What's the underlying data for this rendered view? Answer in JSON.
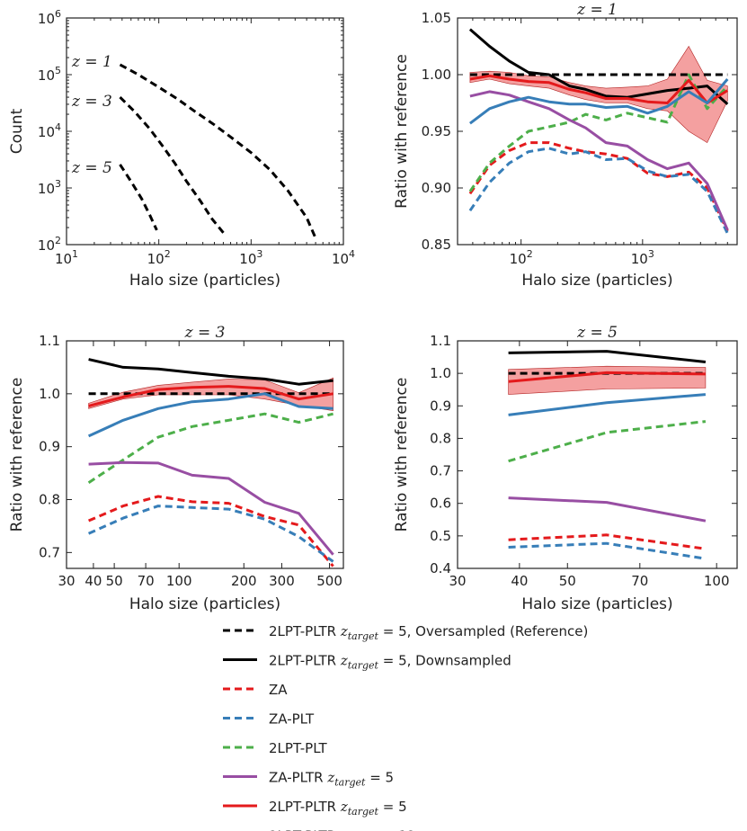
{
  "chart_data": [
    {
      "type": "line",
      "title": "",
      "xlabel": "Halo size (particles)",
      "ylabel": "Count",
      "xscale": "log",
      "yscale": "log",
      "xlim": [
        10,
        10000
      ],
      "ylim": [
        100,
        1000000
      ],
      "xticklabels": [
        "10^1",
        "10^2",
        "10^3",
        "10^4"
      ],
      "yticklabels": [
        "10^2",
        "10^3",
        "10^4",
        "10^5",
        "10^6"
      ],
      "annotations": [
        "z = 1",
        "z = 3",
        "z = 5"
      ],
      "series": [
        {
          "name": "z = 1",
          "style": "dashed",
          "color": "#000000",
          "x": [
            38,
            60,
            100,
            160,
            250,
            400,
            650,
            1000,
            1600,
            2500,
            4000,
            5000
          ],
          "y": [
            150000,
            100000,
            60000,
            37000,
            22000,
            13000,
            7200,
            4200,
            2100,
            900,
            300,
            130
          ]
        },
        {
          "name": "z = 3",
          "style": "dashed",
          "color": "#000000",
          "x": [
            38,
            55,
            80,
            110,
            150,
            200,
            280,
            380,
            520
          ],
          "y": [
            40000,
            22000,
            11000,
            5500,
            2700,
            1300,
            600,
            280,
            150
          ]
        },
        {
          "name": "z = 5",
          "style": "dashed",
          "color": "#000000",
          "x": [
            38,
            50,
            65,
            80,
            95
          ],
          "y": [
            2600,
            1300,
            650,
            330,
            180
          ]
        }
      ]
    },
    {
      "type": "line",
      "title": "z = 1",
      "xlabel": "Halo size (particles)",
      "ylabel": "Ratio with reference",
      "xscale": "log",
      "xlim": [
        30,
        6000
      ],
      "ylim": [
        0.85,
        1.05
      ],
      "xticklabels": [
        "10^2",
        "10^3"
      ],
      "yticklabels": [
        "0.85",
        "0.90",
        "0.95",
        "1.00",
        "1.05"
      ],
      "x": [
        38,
        55,
        80,
        115,
        170,
        250,
        340,
        500,
        750,
        1100,
        1600,
        2400,
        3400,
        5000
      ],
      "band": {
        "x": [
          38,
          55,
          80,
          115,
          170,
          250,
          340,
          500,
          750,
          1100,
          1600,
          2400,
          3400,
          5000
        ],
        "lower": [
          0.993,
          0.996,
          0.992,
          0.99,
          0.988,
          0.982,
          0.978,
          0.975,
          0.975,
          0.97,
          0.968,
          0.95,
          0.94,
          0.977
        ],
        "upper": [
          1.002,
          1.003,
          1.002,
          0.999,
          0.998,
          0.993,
          0.99,
          0.988,
          0.989,
          0.99,
          0.996,
          1.025,
          0.995,
          0.99
        ]
      },
      "series": [
        {
          "name": "Reference",
          "style": "dashed",
          "color": "#000000",
          "values": [
            1.0,
            1.0,
            1.0,
            1.0,
            1.0,
            1.0,
            1.0,
            1.0,
            1.0,
            1.0,
            1.0,
            1.0,
            1.0,
            1.0
          ]
        },
        {
          "name": "Downsampled",
          "style": "solid",
          "color": "#000000",
          "values": [
            1.04,
            1.025,
            1.012,
            1.002,
            1.0,
            0.99,
            0.987,
            0.981,
            0.98,
            0.983,
            0.986,
            0.988,
            0.99,
            0.974
          ]
        },
        {
          "name": "ZA",
          "style": "dashed",
          "color": "#e41a1c",
          "values": [
            0.895,
            0.92,
            0.933,
            0.94,
            0.94,
            0.935,
            0.932,
            0.93,
            0.926,
            0.913,
            0.91,
            0.914,
            0.9,
            0.862
          ]
        },
        {
          "name": "ZA-PLT",
          "style": "dashed",
          "color": "#377eb8",
          "values": [
            0.88,
            0.905,
            0.922,
            0.932,
            0.935,
            0.93,
            0.932,
            0.925,
            0.926,
            0.915,
            0.91,
            0.912,
            0.897,
            0.86
          ]
        },
        {
          "name": "2LPT-PLT",
          "style": "dashed",
          "color": "#4daf4a",
          "values": [
            0.897,
            0.922,
            0.937,
            0.95,
            0.954,
            0.958,
            0.965,
            0.96,
            0.966,
            0.962,
            0.958,
            1.0,
            0.97,
            0.99
          ]
        },
        {
          "name": "ZA-PLTR",
          "style": "solid",
          "color": "#984ea3",
          "values": [
            0.981,
            0.985,
            0.982,
            0.976,
            0.97,
            0.96,
            0.953,
            0.94,
            0.937,
            0.925,
            0.917,
            0.922,
            0.904,
            0.863
          ]
        },
        {
          "name": "2LPT-PLTR z5",
          "style": "solid",
          "color": "#e41a1c",
          "values": [
            0.996,
            0.999,
            0.996,
            0.994,
            0.993,
            0.987,
            0.984,
            0.979,
            0.979,
            0.976,
            0.975,
            0.995,
            0.975,
            0.986
          ]
        },
        {
          "name": "2LPT-PLTR z12",
          "style": "solid",
          "color": "#377eb8",
          "values": [
            0.957,
            0.97,
            0.976,
            0.98,
            0.976,
            0.974,
            0.974,
            0.971,
            0.972,
            0.966,
            0.972,
            0.985,
            0.975,
            0.996
          ]
        }
      ]
    },
    {
      "type": "line",
      "title": "z = 3",
      "xlabel": "Halo size (particles)",
      "ylabel": "Ratio with reference",
      "xscale": "log",
      "xlim": [
        30,
        580
      ],
      "ylim": [
        0.67,
        1.1
      ],
      "xticks": [
        30,
        40,
        50,
        70,
        100,
        200,
        300,
        500
      ],
      "xticklabels": [
        "30",
        "40",
        "50",
        "70",
        "100",
        "200",
        "300",
        "500"
      ],
      "yticklabels": [
        "0.7",
        "0.8",
        "0.9",
        "1.0",
        "1.1"
      ],
      "x": [
        38,
        55,
        80,
        115,
        170,
        250,
        360,
        520
      ],
      "band": {
        "x": [
          38,
          55,
          80,
          115,
          170,
          250,
          360,
          520
        ],
        "lower": [
          0.972,
          0.99,
          0.998,
          0.998,
          0.998,
          0.99,
          0.978,
          0.968
        ],
        "upper": [
          0.982,
          1.003,
          1.016,
          1.022,
          1.028,
          1.026,
          1.002,
          1.03
        ]
      },
      "series": [
        {
          "name": "Reference",
          "style": "dashed",
          "color": "#000000",
          "values": [
            1.0,
            1.0,
            1.0,
            1.0,
            1.0,
            1.0,
            1.0,
            1.0
          ]
        },
        {
          "name": "Downsampled",
          "style": "solid",
          "color": "#000000",
          "values": [
            1.065,
            1.05,
            1.047,
            1.04,
            1.033,
            1.028,
            1.018,
            1.025
          ]
        },
        {
          "name": "ZA",
          "style": "dashed",
          "color": "#e41a1c",
          "values": [
            0.76,
            0.788,
            0.806,
            0.796,
            0.793,
            0.768,
            0.752,
            0.674
          ]
        },
        {
          "name": "ZA-PLT",
          "style": "dashed",
          "color": "#377eb8",
          "values": [
            0.736,
            0.765,
            0.788,
            0.785,
            0.782,
            0.763,
            0.73,
            0.683
          ]
        },
        {
          "name": "2LPT-PLT",
          "style": "dashed",
          "color": "#4daf4a",
          "values": [
            0.832,
            0.875,
            0.918,
            0.938,
            0.95,
            0.962,
            0.946,
            0.962
          ]
        },
        {
          "name": "ZA-PLTR",
          "style": "solid",
          "color": "#984ea3",
          "values": [
            0.867,
            0.87,
            0.869,
            0.846,
            0.84,
            0.795,
            0.774,
            0.696
          ]
        },
        {
          "name": "2LPT-PLTR z5",
          "style": "solid",
          "color": "#e41a1c",
          "values": [
            0.977,
            0.994,
            1.008,
            1.012,
            1.014,
            1.01,
            0.99,
            1.0
          ]
        },
        {
          "name": "2LPT-PLTR z12",
          "style": "solid",
          "color": "#377eb8",
          "values": [
            0.92,
            0.95,
            0.972,
            0.985,
            0.99,
            1.0,
            0.976,
            0.972
          ]
        }
      ]
    },
    {
      "type": "line",
      "title": "z = 5",
      "xlabel": "Halo size (particles)",
      "ylabel": "Ratio with reference",
      "xscale": "log",
      "xlim": [
        30,
        110
      ],
      "ylim": [
        0.4,
        1.1
      ],
      "xticks": [
        30,
        40,
        50,
        70,
        100
      ],
      "xticklabels": [
        "30",
        "40",
        "50",
        "70",
        "100"
      ],
      "yticklabels": [
        "0.4",
        "0.5",
        "0.6",
        "0.7",
        "0.8",
        "0.9",
        "1.0",
        "1.1"
      ],
      "x": [
        38,
        60,
        95
      ],
      "band": {
        "x": [
          38,
          60,
          95
        ],
        "lower": [
          0.935,
          0.952,
          0.955
        ],
        "upper": [
          1.012,
          1.022,
          1.018
        ]
      },
      "series": [
        {
          "name": "Reference",
          "style": "dashed",
          "color": "#000000",
          "values": [
            1.0,
            1.0,
            1.0
          ]
        },
        {
          "name": "Downsampled",
          "style": "solid",
          "color": "#000000",
          "values": [
            1.063,
            1.068,
            1.035
          ]
        },
        {
          "name": "ZA",
          "style": "dashed",
          "color": "#e41a1c",
          "values": [
            0.488,
            0.503,
            0.46
          ]
        },
        {
          "name": "ZA-PLT",
          "style": "dashed",
          "color": "#377eb8",
          "values": [
            0.465,
            0.477,
            0.43
          ]
        },
        {
          "name": "2LPT-PLT",
          "style": "dashed",
          "color": "#4daf4a",
          "values": [
            0.73,
            0.818,
            0.852
          ]
        },
        {
          "name": "ZA-PLTR",
          "style": "solid",
          "color": "#984ea3",
          "values": [
            0.617,
            0.603,
            0.546
          ]
        },
        {
          "name": "2LPT-PLTR z5",
          "style": "solid",
          "color": "#e41a1c",
          "values": [
            0.975,
            1.002,
            0.998
          ]
        },
        {
          "name": "2LPT-PLTR z12",
          "style": "solid",
          "color": "#377eb8",
          "values": [
            0.872,
            0.91,
            0.935
          ]
        }
      ]
    }
  ],
  "legend": [
    {
      "style": "dashed",
      "color": "#000000",
      "prefix": "2LPT-PLTR ",
      "sub": "z",
      "subscript": "target",
      "eq": " = 5",
      "suffix": ", Oversampled (Reference)"
    },
    {
      "style": "solid",
      "color": "#000000",
      "prefix": "2LPT-PLTR ",
      "sub": "z",
      "subscript": "target",
      "eq": " = 5",
      "suffix": ", Downsampled"
    },
    {
      "style": "dashed",
      "color": "#e41a1c",
      "prefix": "ZA",
      "sub": "",
      "subscript": "",
      "eq": "",
      "suffix": ""
    },
    {
      "style": "dashed",
      "color": "#377eb8",
      "prefix": "ZA-PLT",
      "sub": "",
      "subscript": "",
      "eq": "",
      "suffix": ""
    },
    {
      "style": "dashed",
      "color": "#4daf4a",
      "prefix": "2LPT-PLT",
      "sub": "",
      "subscript": "",
      "eq": "",
      "suffix": ""
    },
    {
      "style": "solid",
      "color": "#984ea3",
      "prefix": "ZA-PLTR ",
      "sub": "z",
      "subscript": "target",
      "eq": " = 5",
      "suffix": ""
    },
    {
      "style": "solid",
      "color": "#e41a1c",
      "prefix": "2LPT-PLTR ",
      "sub": "z",
      "subscript": "target",
      "eq": " = 5",
      "suffix": ""
    },
    {
      "style": "solid",
      "color": "#377eb8",
      "prefix": "2LPT-PLTR ",
      "sub": "z",
      "subscript": "target",
      "eq": " = 12",
      "suffix": ""
    }
  ],
  "colors": {
    "band": "#f08080"
  }
}
